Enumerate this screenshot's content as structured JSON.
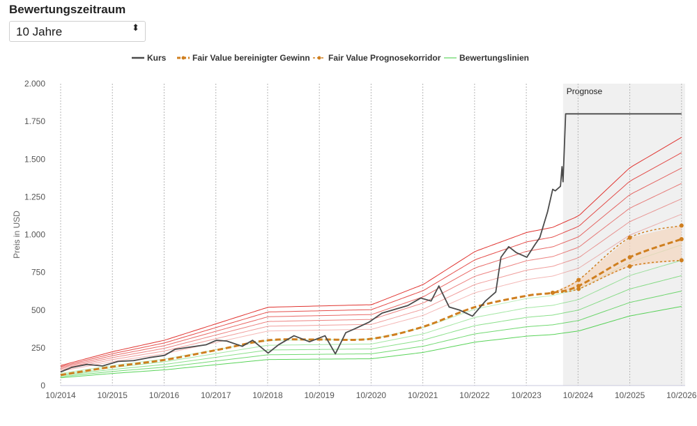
{
  "header": {
    "title": "Bewertungszeitraum"
  },
  "period_select": {
    "value": "10 Jahre",
    "caret": "⬍"
  },
  "colors": {
    "kurs": "#4a4a4a",
    "fair_value": "#cf7f1f",
    "corridor_fill": "#f3d6bd",
    "red": "#e0332f",
    "green": "#3fcc3f",
    "forecast_band": "#f0f0f0"
  },
  "chart_data": {
    "type": "line",
    "title": "",
    "xlabel": "",
    "ylabel": "Preis in USD",
    "ylim": [
      0,
      2000
    ],
    "y_ticks": [
      0,
      250,
      500,
      750,
      1000,
      1250,
      1500,
      1750,
      2000
    ],
    "y_tick_labels": [
      "0",
      "250",
      "500",
      "750",
      "1.000",
      "1.250",
      "1.500",
      "1.750",
      "2.000"
    ],
    "x_ticks": [
      2014.79,
      2015.79,
      2016.79,
      2017.79,
      2018.79,
      2019.79,
      2020.79,
      2021.79,
      2022.79,
      2023.79,
      2024.79,
      2025.79,
      2026.79
    ],
    "x_tick_labels": [
      "10/2014",
      "10/2015",
      "10/2016",
      "10/2017",
      "10/2018",
      "10/2019",
      "10/2020",
      "10/2021",
      "10/2022",
      "10/2023",
      "10/2024",
      "10/2025",
      "10/2026"
    ],
    "xlim": [
      2014.79,
      2026.86
    ],
    "forecast_start": 2024.5,
    "forecast_label": "Prognose",
    "legend": [
      "Kurs",
      "Fair Value bereinigter Gewinn",
      "Fair Value Prognosekorridor",
      "Bewertungslinien"
    ],
    "legend_position": "top",
    "grid": "vertical dotted",
    "kurs": {
      "name": "Kurs",
      "x": [
        2014.79,
        2015.0,
        2015.3,
        2015.6,
        2015.9,
        2016.2,
        2016.5,
        2016.8,
        2017.0,
        2017.3,
        2017.6,
        2017.8,
        2018.0,
        2018.3,
        2018.5,
        2018.8,
        2019.0,
        2019.3,
        2019.6,
        2019.9,
        2020.1,
        2020.3,
        2020.5,
        2020.75,
        2021.0,
        2021.3,
        2021.5,
        2021.75,
        2021.95,
        2022.1,
        2022.3,
        2022.5,
        2022.75,
        2023.0,
        2023.2,
        2023.3,
        2023.45,
        2023.6,
        2023.8,
        2023.95,
        2024.05,
        2024.2,
        2024.3,
        2024.35,
        2024.45,
        2024.48,
        2024.5,
        2024.55,
        2026.79
      ],
      "y": [
        90,
        120,
        140,
        130,
        160,
        165,
        185,
        200,
        240,
        255,
        270,
        300,
        295,
        260,
        300,
        215,
        270,
        330,
        290,
        330,
        210,
        350,
        380,
        420,
        480,
        510,
        530,
        580,
        560,
        660,
        520,
        500,
        460,
        560,
        620,
        850,
        920,
        880,
        850,
        930,
        980,
        1150,
        1300,
        1290,
        1320,
        1450,
        1350,
        1800,
        1800
      ]
    },
    "fair_value": {
      "name": "Fair Value bereinigter Gewinn",
      "x": [
        2014.79,
        2015.8,
        2016.8,
        2017.8,
        2018.8,
        2019.8,
        2020.8,
        2021.8,
        2022.8,
        2023.8,
        2024.3
      ],
      "y": [
        70,
        125,
        170,
        235,
        300,
        305,
        310,
        390,
        520,
        595,
        615
      ]
    },
    "corridor": {
      "name": "Fair Value Prognosekorridor",
      "x": [
        2024.3,
        2024.8,
        2025.79,
        2026.79
      ],
      "upper": [
        615,
        700,
        980,
        1060
      ],
      "mid": [
        615,
        660,
        850,
        970
      ],
      "lower": [
        615,
        640,
        790,
        830
      ]
    },
    "bewertungslinien": {
      "name": "Bewertungslinien",
      "multipliers": [
        1.6,
        1.5,
        1.4,
        1.3,
        1.2,
        1.1,
        0.9,
        0.8,
        0.7,
        0.6,
        0.5
      ]
    }
  }
}
